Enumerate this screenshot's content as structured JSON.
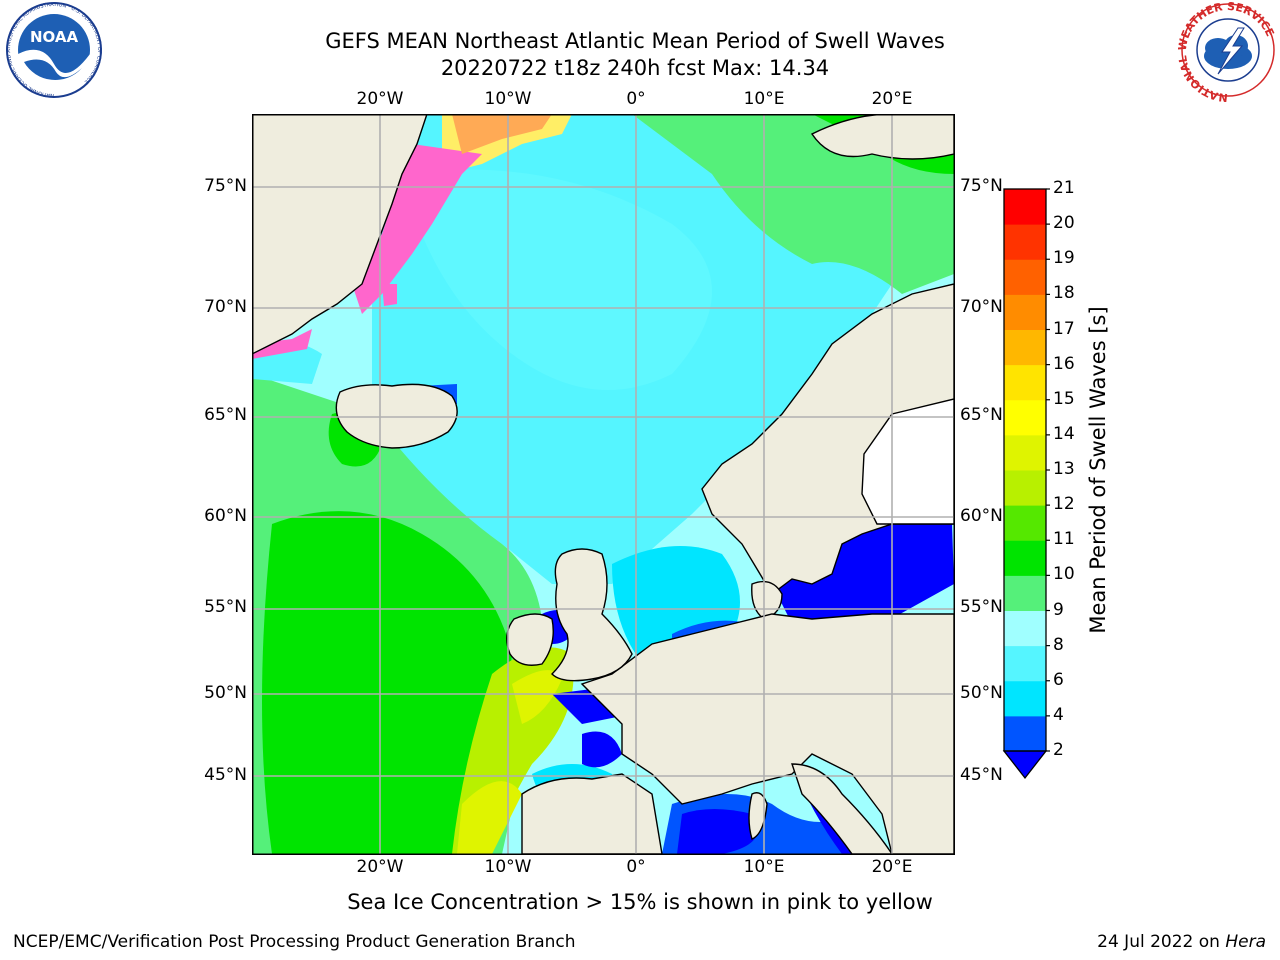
{
  "title": {
    "line1": "GEFS MEAN Northeast Atlantic Mean Period of Swell Waves",
    "line2": "20220722 t18z 240h fcst   Max: 14.34"
  },
  "map": {
    "lon_labels": [
      "20°W",
      "10°W",
      "0°",
      "10°E",
      "20°E"
    ],
    "lat_labels": [
      "75°N",
      "70°N",
      "65°N",
      "60°N",
      "55°N",
      "50°N",
      "45°N"
    ],
    "colors": {
      "land": "#efedde",
      "ice_pink": "#ff66cc",
      "ice_orange": "#ffaa55",
      "ice_yellow": "#ffee66",
      "gridline": "#b0b0b0"
    }
  },
  "colorbar": {
    "label": "Mean Period of Swell Waves [s]",
    "ticks": [
      "2",
      "4",
      "6",
      "8",
      "9",
      "10",
      "11",
      "12",
      "13",
      "14",
      "15",
      "16",
      "17",
      "18",
      "19",
      "20",
      "21"
    ],
    "colors": [
      "#0055ff",
      "#00e5ff",
      "#55f5ff",
      "#a0ffff",
      "#55f07a",
      "#00e400",
      "#55e800",
      "#b8f000",
      "#dff400",
      "#ffff00",
      "#ffe400",
      "#ffb700",
      "#ff8c00",
      "#ff6100",
      "#ff3300",
      "#ff0000"
    ],
    "under_color": "#0000ff"
  },
  "logos": {
    "noaa_text": "NOAA",
    "noaa_ring_text": "NATIONAL OCEANIC AND ATMOSPHERIC ADMINISTRATION · U.S. DEPARTMENT OF COMMERCE",
    "nws_ring_text": "NATIONAL WEATHER SERVICE"
  },
  "caption": "Sea Ice Concentration > 15% is shown in pink to yellow",
  "footer": {
    "credit": "NCEP/EMC/Verification Post Processing Product Generation Branch",
    "date_prefix": "24 Jul 2022 on ",
    "host": "Hera"
  }
}
